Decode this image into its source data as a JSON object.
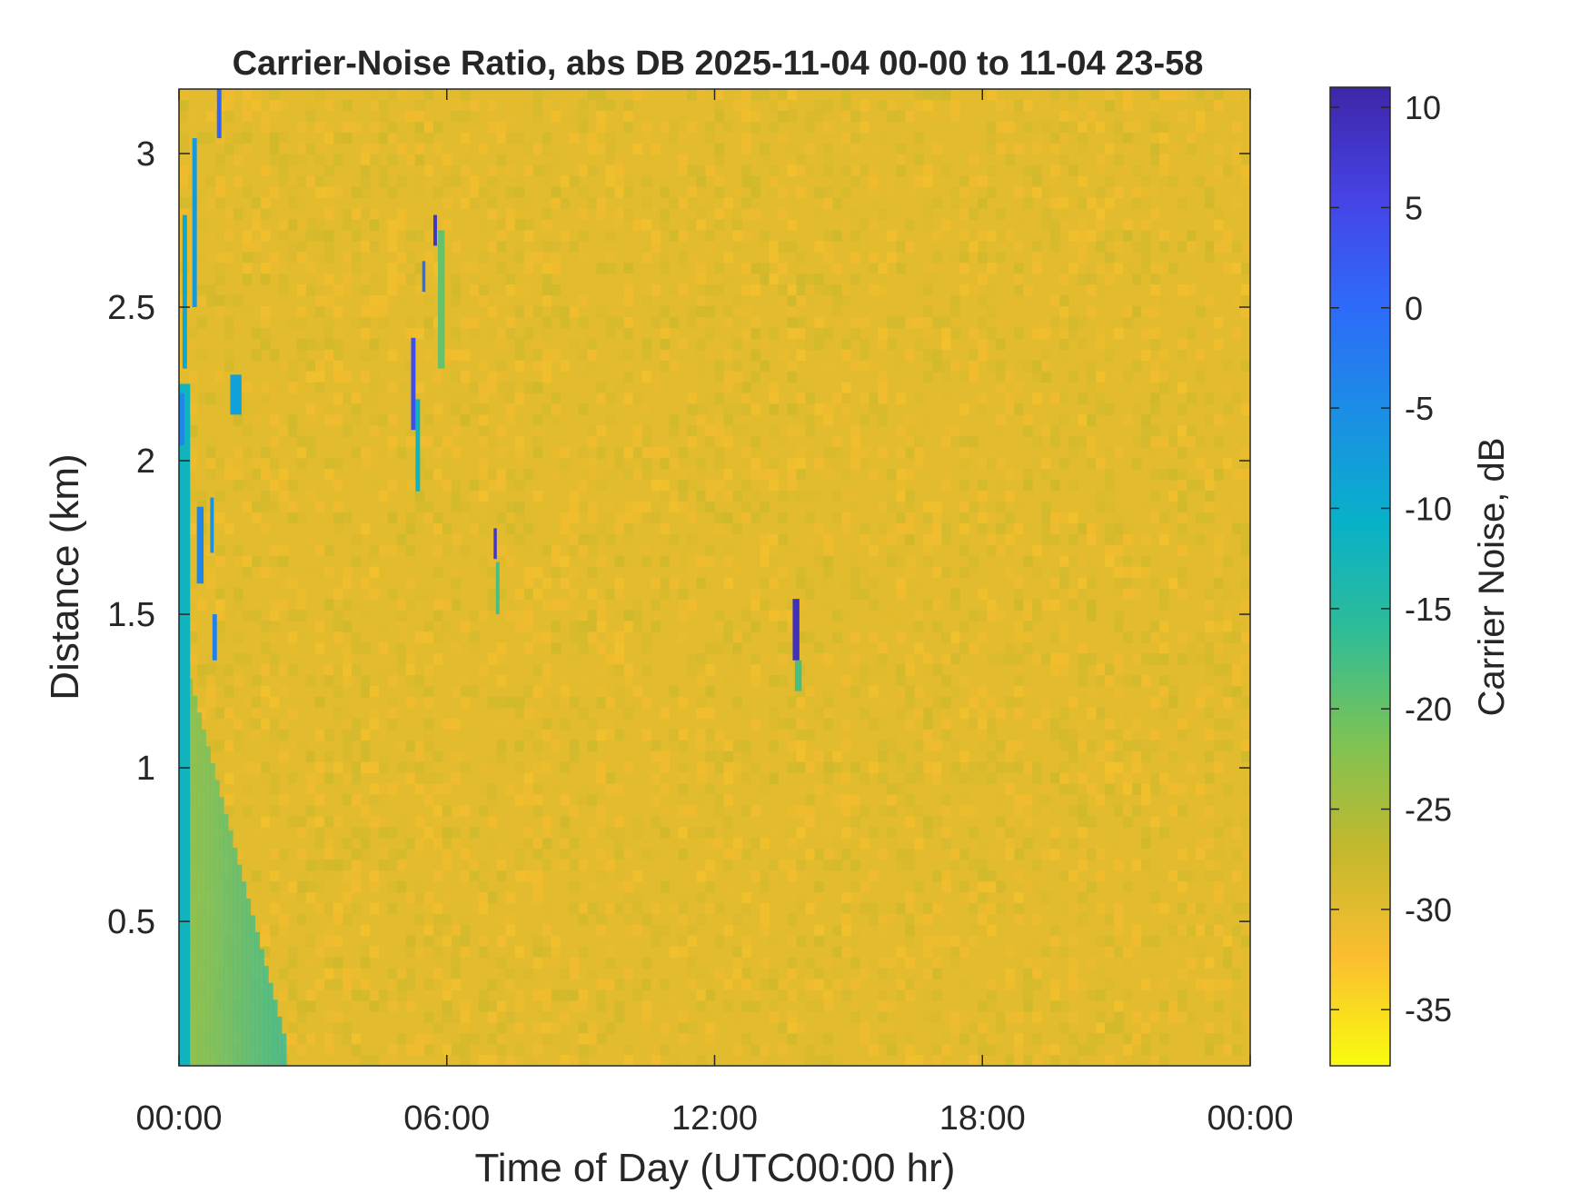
{
  "chart_data": {
    "type": "heatmap",
    "title": "Carrier-Noise Ratio, abs DB 2025-11-04 00-00 to 11-04 23-58",
    "xlabel": "Time of Day (UTC00:00 hr)",
    "ylabel": "Distance (km)",
    "colorbar_label": "Carrier Noise, dB",
    "x_ticks": [
      "00:00",
      "06:00",
      "12:00",
      "18:00",
      "00:00"
    ],
    "x_tick_hours": [
      0,
      6,
      12,
      18,
      24
    ],
    "xlim": [
      0,
      24
    ],
    "y_ticks": [
      "0.5",
      "1",
      "1.5",
      "2",
      "2.5",
      "3"
    ],
    "y_tick_values": [
      0.5,
      1,
      1.5,
      2,
      2.5,
      3
    ],
    "ylim": [
      0.03,
      3.21
    ],
    "colorbar_ticks": [
      "10",
      "5",
      "0",
      "-5",
      "-10",
      "-15",
      "-20",
      "-25",
      "-30",
      "-35"
    ],
    "colorbar_tick_values": [
      10,
      5,
      0,
      -5,
      -10,
      -15,
      -20,
      -25,
      -30,
      -35
    ],
    "clim": [
      -37.8,
      11
    ],
    "background_value": -30,
    "colormap": "parula",
    "colormap_stops": [
      "#f9fb0e",
      "#fbbe30",
      "#c3b82c",
      "#7cc355",
      "#2fbc97",
      "#08b1c9",
      "#1b8ee5",
      "#2e6af9",
      "#4642e4",
      "#3e26a8"
    ],
    "features": [
      {
        "t_start": 0.0,
        "t_end": 0.25,
        "d_start": 0.03,
        "d_end": 2.25,
        "value": -12
      },
      {
        "t_start": 0.0,
        "t_end": 0.12,
        "d_start": 2.05,
        "d_end": 2.22,
        "value": -4
      },
      {
        "t_start": 0.08,
        "t_end": 0.18,
        "d_start": 2.3,
        "d_end": 2.8,
        "value": -9
      },
      {
        "t_start": 0.3,
        "t_end": 0.4,
        "d_start": 2.5,
        "d_end": 3.05,
        "value": -7
      },
      {
        "t_start": 0.4,
        "t_end": 0.55,
        "d_start": 1.6,
        "d_end": 1.85,
        "value": -4
      },
      {
        "t_start": 0.7,
        "t_end": 0.78,
        "d_start": 1.7,
        "d_end": 1.88,
        "value": -6
      },
      {
        "t_start": 0.75,
        "t_end": 0.85,
        "d_start": 1.35,
        "d_end": 1.5,
        "value": -3
      },
      {
        "t_start": 0.85,
        "t_end": 0.95,
        "d_start": 3.05,
        "d_end": 3.21,
        "value": 1
      },
      {
        "t_start": 1.15,
        "t_end": 1.4,
        "d_start": 2.15,
        "d_end": 2.28,
        "value": -8
      },
      {
        "t_start": 5.2,
        "t_end": 5.3,
        "d_start": 2.1,
        "d_end": 2.4,
        "value": 4
      },
      {
        "t_start": 5.3,
        "t_end": 5.4,
        "d_start": 1.9,
        "d_end": 2.2,
        "value": -12
      },
      {
        "t_start": 5.45,
        "t_end": 5.52,
        "d_start": 2.55,
        "d_end": 2.65,
        "value": 0
      },
      {
        "t_start": 5.7,
        "t_end": 5.78,
        "d_start": 2.7,
        "d_end": 2.8,
        "value": 8
      },
      {
        "t_start": 5.8,
        "t_end": 5.95,
        "d_start": 2.3,
        "d_end": 2.75,
        "value": -20
      },
      {
        "t_start": 7.05,
        "t_end": 7.12,
        "d_start": 1.68,
        "d_end": 1.78,
        "value": 8
      },
      {
        "t_start": 7.1,
        "t_end": 7.18,
        "d_start": 1.5,
        "d_end": 1.67,
        "value": -18
      },
      {
        "t_start": 13.75,
        "t_end": 13.9,
        "d_start": 1.35,
        "d_end": 1.55,
        "value": 9
      },
      {
        "t_start": 13.8,
        "t_end": 13.95,
        "d_start": 1.25,
        "d_end": 1.35,
        "value": -18
      }
    ],
    "grid": false
  }
}
